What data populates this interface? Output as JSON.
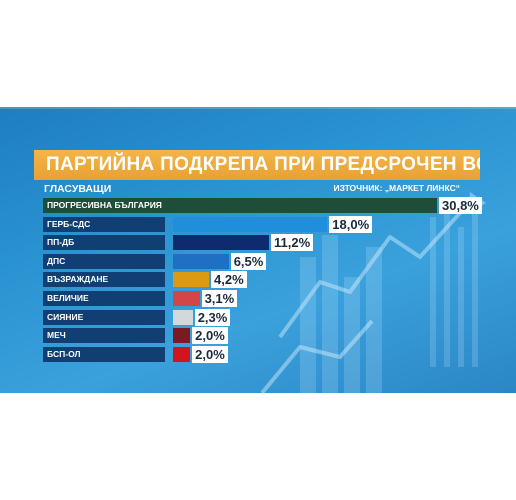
{
  "title": "ПАРТИЙНА ПОДКРЕПА ПРИ ПРЕДСРОЧЕН ВОТ",
  "subtitle": "ГЛАСУВАЩИ",
  "source": "ИЗТОЧНИК: „МАРКЕТ ЛИНКС“",
  "chart_data": {
    "type": "bar",
    "orientation": "horizontal",
    "title": "ПАРТИЙНА ПОДКРЕПА ПРИ ПРЕДСРОЧЕН ВОТ",
    "subtitle": "ГЛАСУВАЩИ",
    "categories": [
      "ПРОГРЕСИВНА БЪЛГАРИЯ",
      "ГЕРБ-СДС",
      "ПП-ДБ",
      "ДПС",
      "ВЪЗРАЖДАНЕ",
      "ВЕЛИЧИЕ",
      "СИЯНИЕ",
      "МЕЧ",
      "БСП-ОЛ"
    ],
    "values": [
      30.8,
      18.0,
      11.2,
      6.5,
      4.2,
      3.1,
      2.3,
      2.0,
      2.0
    ],
    "labels": [
      "30,8%",
      "18,0%",
      "11,2%",
      "6,5%",
      "4,2%",
      "3,1%",
      "2,3%",
      "2,0%",
      "2,0%"
    ],
    "colors": [
      "#1e4d3a",
      "#1f8fdb",
      "#0f2a6e",
      "#1f6fc2",
      "#d99a14",
      "#d4454a",
      "#d3d8dd",
      "#7a1b22",
      "#d2141c"
    ],
    "grid": false,
    "legend": "none"
  }
}
